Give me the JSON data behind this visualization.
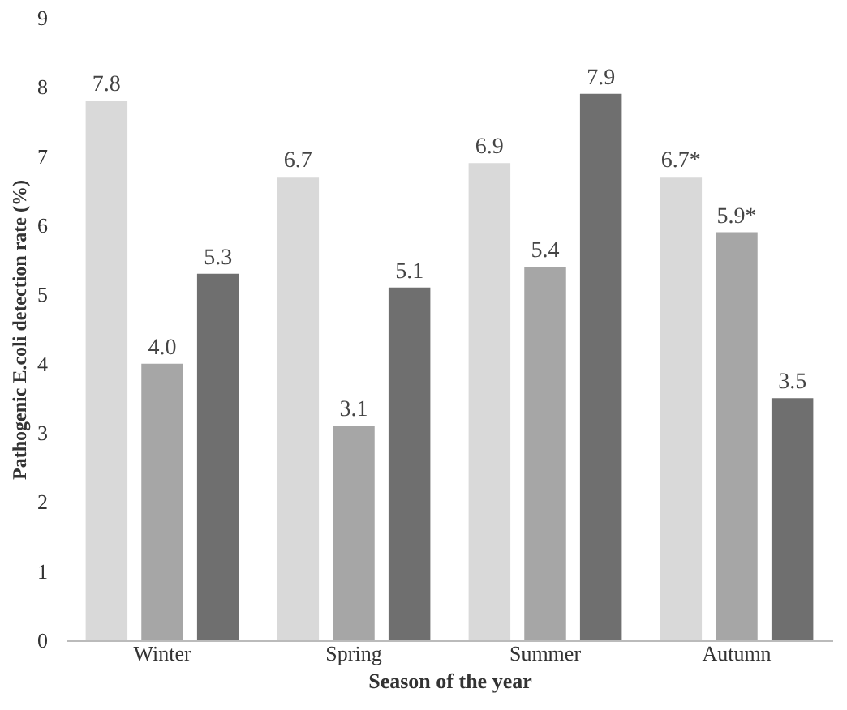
{
  "chart_data": {
    "type": "bar",
    "xlabel": "Season of the year",
    "ylabel": "Pathogenic E.coli detection rate (%)",
    "categories": [
      "Winter",
      "Spring",
      "Summer",
      "Autumn"
    ],
    "series": [
      {
        "color": "#d9d9d9",
        "values": [
          7.8,
          6.7,
          6.9,
          6.7
        ],
        "value_labels": [
          "7.8",
          "6.7",
          "6.9",
          "6.7*"
        ]
      },
      {
        "color": "#a6a6a6",
        "values": [
          4.0,
          3.1,
          5.4,
          5.9
        ],
        "value_labels": [
          "4.0",
          "3.1",
          "5.4",
          "5.9*"
        ]
      },
      {
        "color": "#6f6f6f",
        "values": [
          5.3,
          5.1,
          7.9,
          3.5
        ],
        "value_labels": [
          "5.3",
          "5.1",
          "7.9",
          "3.5"
        ]
      }
    ],
    "ylim": [
      0,
      9
    ],
    "yticks": [
      0,
      1,
      2,
      3,
      4,
      5,
      6,
      7,
      8,
      9
    ],
    "grid": false,
    "legend": false
  }
}
